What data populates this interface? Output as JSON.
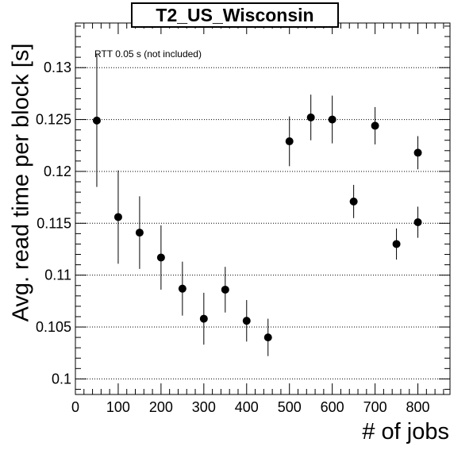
{
  "chart_data": {
    "type": "scatter",
    "title": "T2_US_Wisconsin",
    "xlabel": "# of jobs",
    "ylabel": "Avg. read time per block [s]",
    "annotation": "RTT 0.05 s (not included)",
    "xlim": [
      0,
      875
    ],
    "ylim": [
      0.0985,
      0.1343
    ],
    "x_ticks": [
      0,
      100,
      200,
      300,
      400,
      500,
      600,
      700,
      800
    ],
    "x_tick_labels": [
      "0",
      "100",
      "200",
      "300",
      "400",
      "500",
      "600",
      "700",
      "800"
    ],
    "y_ticks": [
      0.1,
      0.105,
      0.11,
      0.115,
      0.12,
      0.125,
      0.13
    ],
    "y_tick_labels": [
      "0.1",
      "0.105",
      "0.11",
      "0.115",
      "0.12",
      "0.125",
      "0.13"
    ],
    "grid": "horizontal dotted",
    "marker_color": "#000000",
    "series": [
      {
        "points": [
          {
            "x": 50,
            "y": 0.1249,
            "err": 0.0064
          },
          {
            "x": 100,
            "y": 0.1156,
            "err": 0.0045
          },
          {
            "x": 150,
            "y": 0.1141,
            "err": 0.0035
          },
          {
            "x": 200,
            "y": 0.1117,
            "err": 0.0031
          },
          {
            "x": 250,
            "y": 0.1087,
            "err": 0.0026
          },
          {
            "x": 300,
            "y": 0.1058,
            "err": 0.0025
          },
          {
            "x": 350,
            "y": 0.1086,
            "err": 0.0022
          },
          {
            "x": 400,
            "y": 0.1056,
            "err": 0.002
          },
          {
            "x": 450,
            "y": 0.104,
            "err": 0.0018
          },
          {
            "x": 500,
            "y": 0.1229,
            "err": 0.0024
          },
          {
            "x": 550,
            "y": 0.1252,
            "err": 0.0022
          },
          {
            "x": 600,
            "y": 0.125,
            "err": 0.0023
          },
          {
            "x": 650,
            "y": 0.1171,
            "err": 0.0016
          },
          {
            "x": 700,
            "y": 0.1244,
            "err": 0.0018
          },
          {
            "x": 750,
            "y": 0.113,
            "err": 0.0015
          },
          {
            "x": 800,
            "y": 0.1218,
            "err": 0.0016
          },
          {
            "x": 800,
            "y": 0.1151,
            "err": 0.0015
          }
        ]
      }
    ]
  }
}
